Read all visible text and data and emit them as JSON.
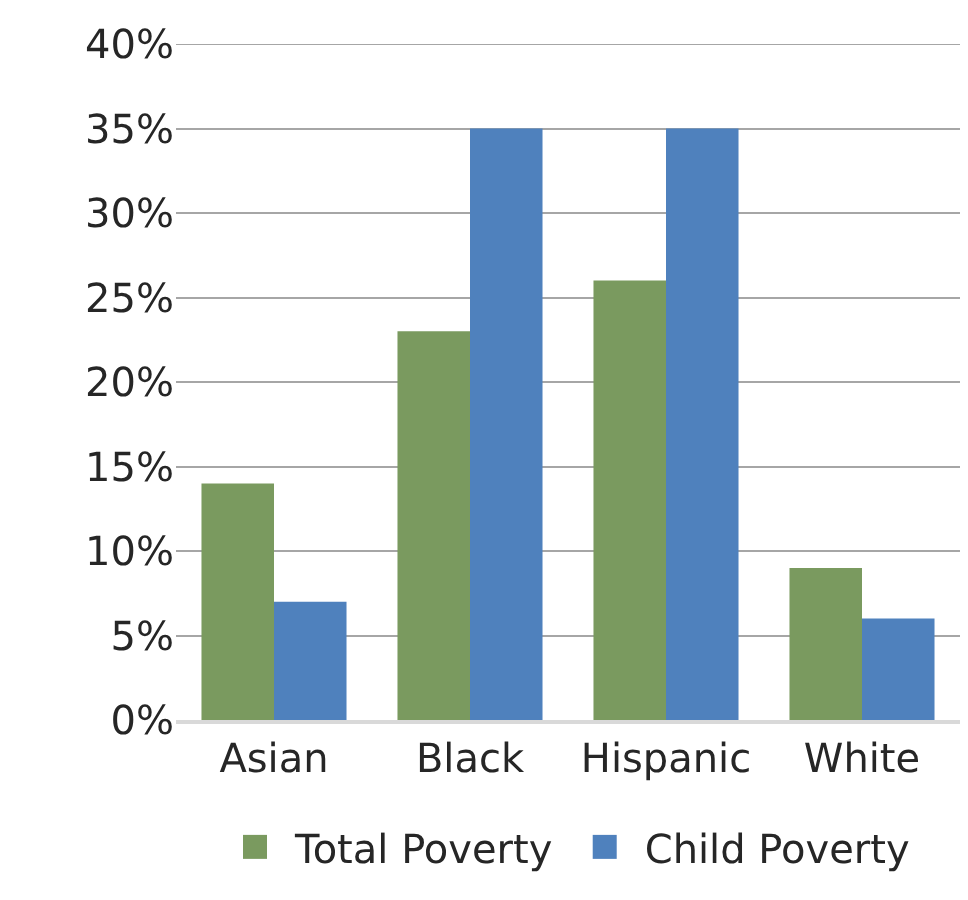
{
  "chart_data": {
    "type": "bar",
    "categories": [
      "Asian",
      "Black",
      "Hispanic",
      "White"
    ],
    "series": [
      {
        "name": "Total Poverty",
        "color": "#7a9a5f",
        "values": [
          14,
          23,
          26,
          9
        ]
      },
      {
        "name": "Child Poverty",
        "color": "#4f81bd",
        "values": [
          7,
          35,
          35,
          6
        ]
      }
    ],
    "ylim": [
      0,
      40
    ],
    "yticks": [
      {
        "value": 0,
        "label": "0%"
      },
      {
        "value": 5,
        "label": "5%"
      },
      {
        "value": 10,
        "label": "10%"
      },
      {
        "value": 15,
        "label": "15%"
      },
      {
        "value": 20,
        "label": "20%"
      },
      {
        "value": 25,
        "label": "25%"
      },
      {
        "value": 30,
        "label": "30%"
      },
      {
        "value": 35,
        "label": "35%"
      },
      {
        "value": 40,
        "label": "40%"
      }
    ],
    "grid": "y",
    "legend": "bottom"
  }
}
